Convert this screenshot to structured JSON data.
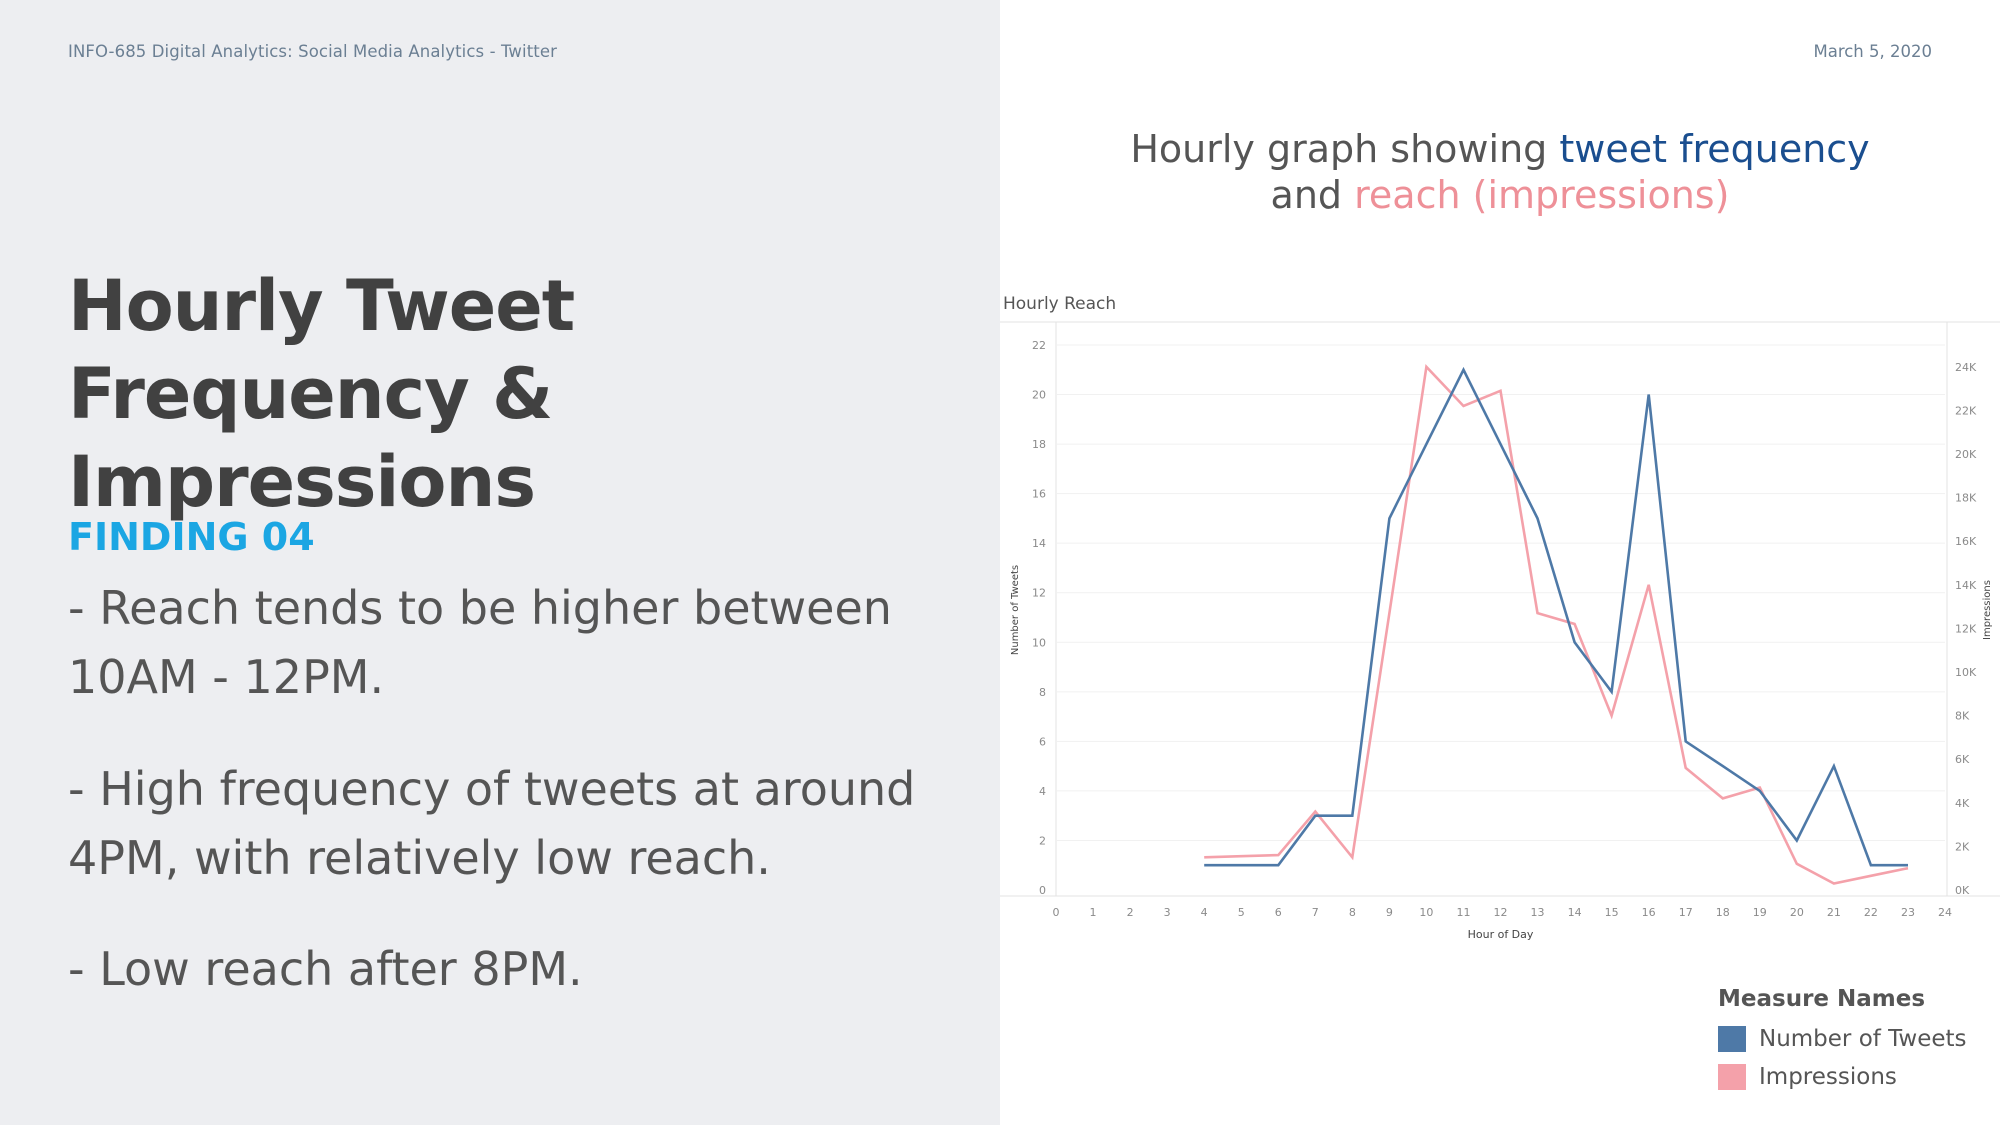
{
  "header": {
    "course": "INFO-685  Digital Analytics: Social Media Analytics - Twitter",
    "date": "March 5, 2020"
  },
  "slide": {
    "title": "Hourly Tweet Frequency & Impressions",
    "finding": "FINDING 04",
    "bullets": [
      "- Reach tends to be higher between 10AM - 12PM.",
      "- High frequency of tweets at around 4PM, with relatively low reach.",
      "- Low reach after 8PM."
    ]
  },
  "graph_heading": {
    "part1": "Hourly graph showing ",
    "part2": "tweet frequency",
    "part3": "and ",
    "part4": "reach (impressions)"
  },
  "colors": {
    "tweets": "#4e79a7",
    "impressions": "#f4a1aa",
    "heading_blue": "#1a4e8f",
    "heading_pink": "#ee9098"
  },
  "chart_data": {
    "type": "line",
    "title": "Hourly Reach",
    "xlabel": "Hour of Day",
    "ylabel": "Number of Tweets",
    "y2label": "Impressions",
    "xlim": [
      0,
      24
    ],
    "ylim": [
      0,
      22
    ],
    "y2lim": [
      0,
      25000
    ],
    "x_ticks": [
      "0",
      "1",
      "2",
      "3",
      "4",
      "5",
      "6",
      "7",
      "8",
      "9",
      "10",
      "11",
      "12",
      "13",
      "14",
      "15",
      "16",
      "17",
      "18",
      "19",
      "20",
      "21",
      "22",
      "23",
      "24"
    ],
    "y_ticks": [
      "0",
      "2",
      "4",
      "6",
      "8",
      "10",
      "12",
      "14",
      "16",
      "18",
      "20",
      "22"
    ],
    "y2_ticks": [
      "0K",
      "2K",
      "4K",
      "6K",
      "8K",
      "10K",
      "12K",
      "14K",
      "16K",
      "18K",
      "20K",
      "22K",
      "24K"
    ],
    "series": [
      {
        "name": "Number of Tweets",
        "axis": "left",
        "x": [
          4,
          5,
          6,
          7,
          8,
          9,
          10,
          11,
          12,
          13,
          14,
          15,
          16,
          17,
          18,
          19,
          20,
          21,
          22,
          23
        ],
        "values": [
          1,
          1,
          1,
          3,
          3,
          15,
          18,
          21,
          18,
          15,
          10,
          8,
          20,
          6,
          5,
          4,
          2,
          5,
          1,
          1
        ]
      },
      {
        "name": "Impressions",
        "axis": "right",
        "x": [
          4,
          5,
          6,
          7,
          8,
          9,
          10,
          11,
          12,
          13,
          14,
          15,
          16,
          17,
          18,
          19,
          20,
          21,
          22,
          23
        ],
        "values": [
          1500,
          1550,
          1600,
          3600,
          1500,
          12700,
          24000,
          22200,
          22900,
          12700,
          12200,
          8000,
          14000,
          5600,
          4200,
          4700,
          1200,
          300,
          650,
          1000
        ]
      }
    ],
    "legend": {
      "title": "Measure Names",
      "position": "bottom-right"
    },
    "grid": true
  }
}
